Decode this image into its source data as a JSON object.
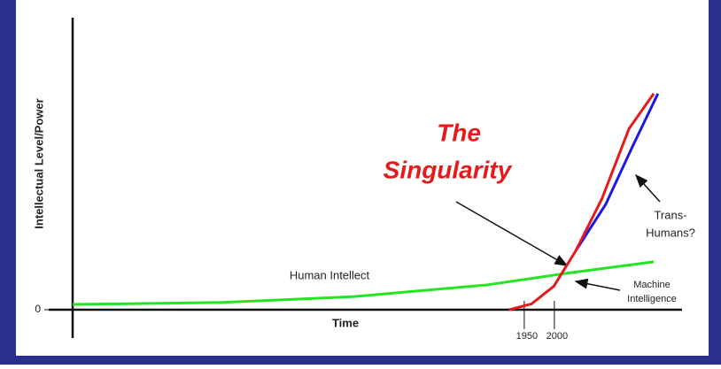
{
  "chart_data": {
    "type": "line",
    "title": [
      "The",
      "Singularity"
    ],
    "xlabel": "Time",
    "ylabel": "Intellectual Level/Power",
    "xlim": [
      1200,
      2212
    ],
    "xticks": [
      1950,
      2000
    ],
    "ylim": [
      0,
      100
    ],
    "yticks": [
      0
    ],
    "series": [
      {
        "name": "Human Intellect",
        "color": "#22e622",
        "x": [
          1200,
          1447,
          1668,
          1888,
          2021,
          2165
        ],
        "values": [
          1.8,
          2.5,
          4.5,
          8.5,
          12.5,
          16.4
        ]
      },
      {
        "color": "#1a1ae6",
        "x": [
          2035,
          2085,
          2130,
          2172
        ],
        "values": [
          20,
          36,
          56,
          74
        ]
      },
      {
        "color": "#e61a1a",
        "x": [
          1925,
          1962,
          1999,
          2035,
          2079,
          2124,
          2165
        ],
        "values": [
          0,
          2,
          8,
          20,
          38,
          62,
          74
        ]
      }
    ],
    "annotations": {
      "machine": [
        "Machine",
        "Intelligence"
      ],
      "trans": [
        "Trans-",
        "Humans?"
      ]
    }
  }
}
